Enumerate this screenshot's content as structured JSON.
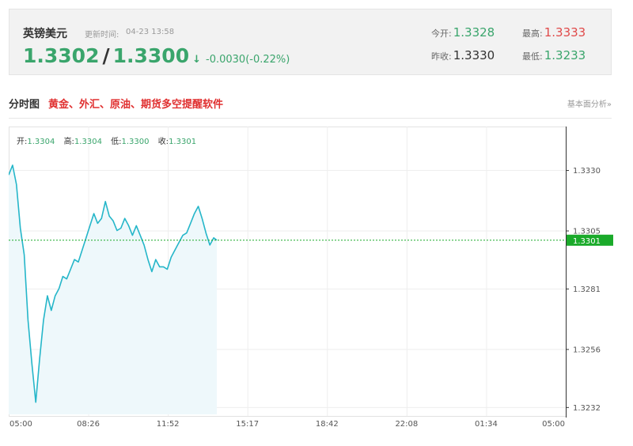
{
  "quote": {
    "name": "英镑美元",
    "time_label": "更新时间:",
    "time": "04-23 13:58",
    "price_a": "1.3302",
    "price_sep": "/",
    "price_b": "1.3300",
    "arrow": "↓",
    "change": "-0.0030(-0.22%)",
    "open_label": "今开:",
    "open": "1.3328",
    "high_label": "最高:",
    "high": "1.3333",
    "prev_close_label": "昨收:",
    "prev_close": "1.3330",
    "low_label": "最低:",
    "low": "1.3233"
  },
  "section": {
    "title": "分时图",
    "promo": "黄金、外汇、原油、期货多空提醒软件",
    "link": "基本面分析»"
  },
  "ohlc": {
    "open_label": "开:",
    "open": "1.3304",
    "high_label": "高:",
    "high": "1.3304",
    "low_label": "低:",
    "low": "1.3300",
    "close_label": "收:",
    "close": "1.3301"
  },
  "colors": {
    "up_red": "#e04a4a",
    "down_green": "#3aa56c",
    "line": "#25b6c9",
    "fill": "#eef8fb",
    "current_badge": "#1aaa2a"
  },
  "chart_data": {
    "type": "area",
    "title": "",
    "xlabel": "",
    "ylabel": "",
    "x_tick_labels": [
      "05:00",
      "08:26",
      "11:52",
      "15:17",
      "18:42",
      "22:08",
      "01:34",
      "05:00"
    ],
    "y_tick_labels": [
      "1.3330",
      "1.3305",
      "1.3281",
      "1.3256",
      "1.3232"
    ],
    "ylim": [
      1.3229,
      1.3348
    ],
    "current_value": "1.3301",
    "grid": true,
    "series": [
      {
        "x": [
          "05:00",
          "05:10",
          "05:20",
          "05:30",
          "05:40",
          "05:50",
          "06:00",
          "06:10",
          "06:20",
          "06:30",
          "06:40",
          "06:50",
          "07:00",
          "07:10",
          "07:20",
          "07:30",
          "07:40",
          "07:50",
          "08:00",
          "08:10",
          "08:20",
          "08:30",
          "08:40",
          "08:50",
          "09:00",
          "09:10",
          "09:20",
          "09:30",
          "09:40",
          "09:50",
          "10:00",
          "10:10",
          "10:20",
          "10:30",
          "10:40",
          "10:50",
          "11:00",
          "11:10",
          "11:20",
          "11:30",
          "11:40",
          "11:50",
          "12:00",
          "12:10",
          "12:20",
          "12:30",
          "12:40",
          "12:50",
          "13:00",
          "13:10",
          "13:20",
          "13:30",
          "13:40",
          "13:50",
          "13:58"
        ],
        "values": [
          1.3328,
          1.3332,
          1.3324,
          1.3306,
          1.3295,
          1.3268,
          1.325,
          1.3234,
          1.3252,
          1.3268,
          1.3278,
          1.3272,
          1.3278,
          1.3281,
          1.3286,
          1.3285,
          1.3289,
          1.3293,
          1.3292,
          1.3297,
          1.3302,
          1.3307,
          1.3312,
          1.3308,
          1.331,
          1.3317,
          1.3311,
          1.3309,
          1.3305,
          1.3306,
          1.331,
          1.3307,
          1.3303,
          1.3307,
          1.3303,
          1.3299,
          1.3293,
          1.3288,
          1.3293,
          1.329,
          1.329,
          1.3289,
          1.3294,
          1.3297,
          1.33,
          1.3303,
          1.3304,
          1.3308,
          1.3312,
          1.3315,
          1.331,
          1.3304,
          1.3299,
          1.3302,
          1.3301
        ]
      }
    ]
  }
}
